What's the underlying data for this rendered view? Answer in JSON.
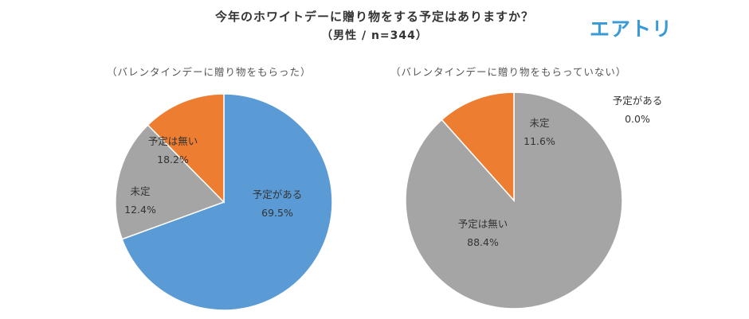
{
  "title": "今年のホワイトデーに贈り物をする予定はありますか？",
  "subtitle": "（男性 / n=344）",
  "brand": "エアトリ",
  "colors": {
    "yes": "#5b9bd5",
    "undecided": "#ed7d31",
    "no": "#a5a5a5"
  },
  "chart_data": [
    {
      "type": "pie",
      "title": "（バレンタインデーに贈り物をもらった）",
      "labels": [
        "予定がある",
        "予定は無い",
        "未定"
      ],
      "display_values": [
        "69.5%",
        "18.2%",
        "12.4%"
      ],
      "values": [
        69.5,
        18.2,
        12.4
      ]
    },
    {
      "type": "pie",
      "title": "（バレンタインデーに贈り物をもらっていない）",
      "labels": [
        "予定がある",
        "予定は無い",
        "未定"
      ],
      "display_values": [
        "0.0%",
        "88.4%",
        "11.6%"
      ],
      "values": [
        0.0,
        88.4,
        11.6
      ]
    }
  ]
}
